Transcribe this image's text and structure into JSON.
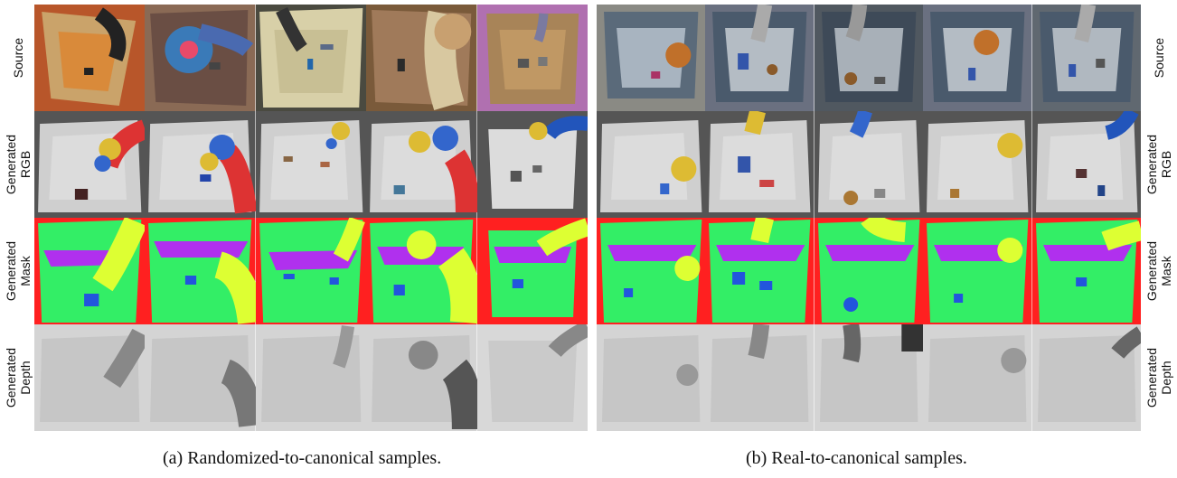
{
  "row_labels": {
    "source": "Source",
    "rgb": [
      "Generated",
      "RGB"
    ],
    "mask": [
      "Generated",
      "Mask"
    ],
    "depth": [
      "Generated",
      "Depth"
    ]
  },
  "captions": {
    "a": "(a) Randomized-to-canonical samples.",
    "b": "(b) Real-to-canonical samples."
  },
  "colors": {
    "mask_background": "#ff2020",
    "mask_tray_floor": "#33ee66",
    "mask_tray_wall": "#b030ee",
    "mask_robot": "#ddff33",
    "mask_objects": "#2255dd"
  }
}
